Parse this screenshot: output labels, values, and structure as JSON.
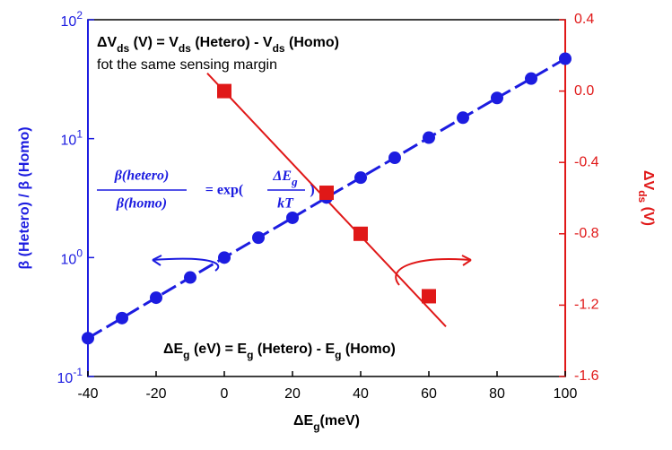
{
  "chart_data": {
    "type": "dual-axis-scatter",
    "xlabel": [
      {
        "text": "ΔE"
      },
      {
        "text": "g",
        "sub": true
      },
      {
        "text": "(meV)"
      }
    ],
    "ylabel": "β (Hetero) / β (Homo)",
    "y2label": [
      {
        "text": "ΔV"
      },
      {
        "text": "ds",
        "sub": true
      },
      {
        "text": " (V)"
      }
    ],
    "xlim": [
      -40,
      100
    ],
    "xticks": [
      -40,
      -20,
      0,
      20,
      40,
      60,
      80,
      100
    ],
    "ylim": [
      0.1,
      100
    ],
    "ylog": true,
    "yticks": [
      {
        "value": 0.1,
        "label": "10",
        "exp": "-1"
      },
      {
        "value": 1,
        "label": "10",
        "exp": "0"
      },
      {
        "value": 10,
        "label": "10",
        "exp": "1"
      },
      {
        "value": 100,
        "label": "10",
        "exp": "2"
      }
    ],
    "y2lim": [
      -1.6,
      0.4
    ],
    "y2ticks": [
      0.4,
      {
        "value": 0,
        "label": "0.0"
      },
      -0.4,
      -0.8,
      -1.2,
      -1.6
    ],
    "series": [
      {
        "color": "#1c1ce0",
        "marker": "circle",
        "x": [
          -40,
          -30,
          -20,
          -10,
          0,
          10,
          20,
          30,
          40,
          50,
          60,
          70,
          80,
          90,
          100
        ],
        "values": [
          0.21,
          0.31,
          0.46,
          0.68,
          1.0,
          1.47,
          2.16,
          3.2,
          4.7,
          6.9,
          10.2,
          15,
          22,
          32,
          47
        ]
      },
      {
        "color": "#e01818",
        "marker": "square",
        "axis": "y2",
        "x": [
          0,
          30,
          40,
          60
        ],
        "values": [
          0.0,
          -0.57,
          -0.8,
          -1.15
        ]
      }
    ],
    "fit_line": {
      "color": "#e01818",
      "axis": "y2",
      "x": [
        -5,
        65
      ],
      "values": [
        0.1,
        -1.32
      ]
    },
    "annotations": {
      "top": [
        {
          "text": "ΔV"
        },
        {
          "text": "ds",
          "sub": true
        },
        {
          "text": " (V) = V"
        },
        {
          "text": "ds",
          "sub": true
        },
        {
          "text": " (Hetero) - V"
        },
        {
          "text": "ds",
          "sub": true
        },
        {
          "text": " (Homo)"
        }
      ],
      "top2": "fot the same sensing margin",
      "bottom": [
        {
          "text": "ΔE"
        },
        {
          "text": "g",
          "sub": true
        },
        {
          "text": " (eV) = E"
        },
        {
          "text": "g",
          "sub": true
        },
        {
          "text": " (Hetero) - E"
        },
        {
          "text": "g",
          "sub": true
        },
        {
          "text": " (Homo)"
        }
      ],
      "formula": {
        "num": "β(hetero)",
        "den": "β(homo)",
        "mid": "= exp(",
        "rnum": [
          {
            "text": "ΔE"
          },
          {
            "text": "g",
            "sub": true
          }
        ],
        "rden": "kT",
        "end": ")"
      }
    }
  }
}
